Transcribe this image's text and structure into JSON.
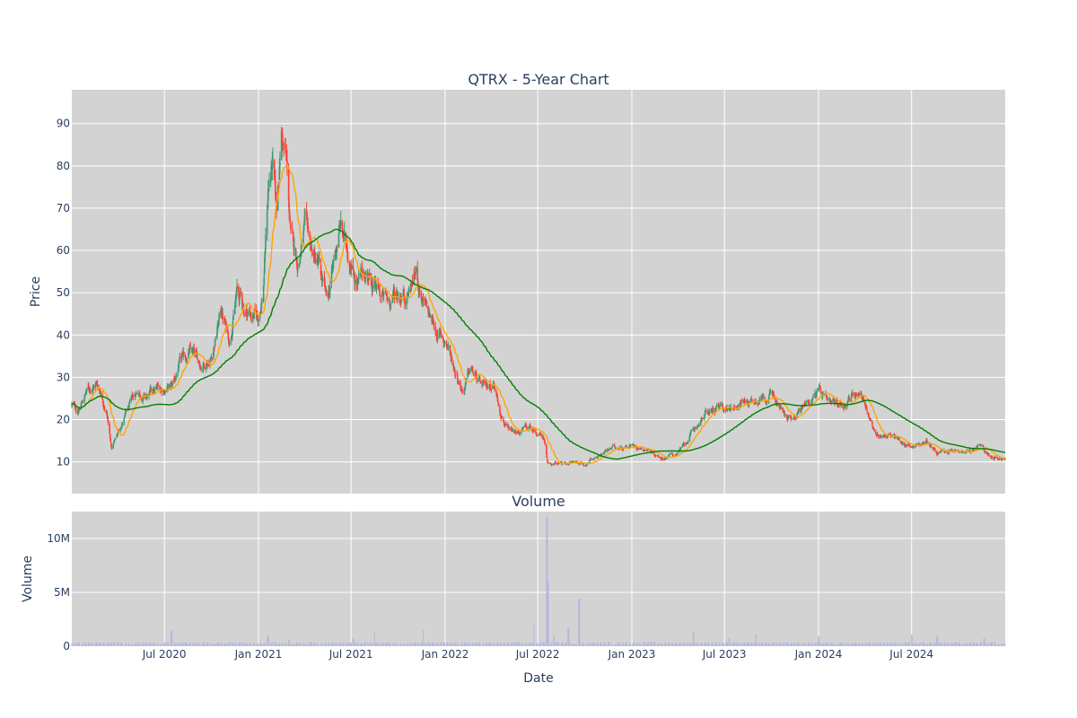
{
  "chart_data": [
    {
      "type": "candlestick",
      "title": "QTRX - 5-Year Chart",
      "xlabel": "",
      "ylabel": "Price",
      "xlim": [
        "2020-01-02",
        "2024-12-31"
      ],
      "ylim": [
        2.5,
        98
      ],
      "yticks": [
        10,
        20,
        30,
        40,
        50,
        60,
        70,
        80,
        90
      ],
      "grid": true,
      "legend": "none",
      "colors": {
        "plot_bg": "#d3d3d3",
        "grid": "#ffffff",
        "up": "#3d9970",
        "down": "#ff4136",
        "ma_short": "#ffa500",
        "ma_long": "#008000"
      },
      "price_anchors": [
        [
          "2020-01-02",
          23.5
        ],
        [
          "2020-01-15",
          22
        ],
        [
          "2020-02-01",
          27
        ],
        [
          "2020-02-20",
          28.5
        ],
        [
          "2020-03-01",
          26
        ],
        [
          "2020-03-10",
          22
        ],
        [
          "2020-03-20",
          13
        ],
        [
          "2020-04-01",
          17
        ],
        [
          "2020-04-20",
          22
        ],
        [
          "2020-05-10",
          27
        ],
        [
          "2020-05-25",
          25
        ],
        [
          "2020-06-15",
          27
        ],
        [
          "2020-07-15",
          27.5
        ],
        [
          "2020-08-01",
          33
        ],
        [
          "2020-08-20",
          36
        ],
        [
          "2020-09-10",
          33
        ],
        [
          "2020-10-01",
          35
        ],
        [
          "2020-10-20",
          46
        ],
        [
          "2020-11-05",
          39
        ],
        [
          "2020-11-20",
          50
        ],
        [
          "2020-12-05",
          46
        ],
        [
          "2020-12-31",
          44
        ],
        [
          "2021-01-10",
          50
        ],
        [
          "2021-01-20",
          75
        ],
        [
          "2021-01-28",
          80
        ],
        [
          "2021-02-05",
          68
        ],
        [
          "2021-02-15",
          88
        ],
        [
          "2021-02-25",
          80
        ],
        [
          "2021-03-05",
          63
        ],
        [
          "2021-03-20",
          57
        ],
        [
          "2021-04-01",
          65
        ],
        [
          "2021-04-20",
          58
        ],
        [
          "2021-05-01",
          55
        ],
        [
          "2021-05-15",
          47
        ],
        [
          "2021-05-30",
          58
        ],
        [
          "2021-06-10",
          66
        ],
        [
          "2021-06-20",
          61
        ],
        [
          "2021-07-01",
          58
        ],
        [
          "2021-07-15",
          52
        ],
        [
          "2021-08-01",
          55
        ],
        [
          "2021-08-20",
          50
        ],
        [
          "2021-09-10",
          48
        ],
        [
          "2021-10-01",
          50
        ],
        [
          "2021-10-20",
          50
        ],
        [
          "2021-11-05",
          55
        ],
        [
          "2021-11-20",
          47
        ],
        [
          "2021-12-05",
          43
        ],
        [
          "2021-12-20",
          40
        ],
        [
          "2022-01-05",
          38
        ],
        [
          "2022-01-20",
          32
        ],
        [
          "2022-02-05",
          27
        ],
        [
          "2022-02-20",
          32
        ],
        [
          "2022-03-05",
          29
        ],
        [
          "2022-03-20",
          27
        ],
        [
          "2022-04-05",
          29
        ],
        [
          "2022-04-20",
          22
        ],
        [
          "2022-05-05",
          17
        ],
        [
          "2022-05-20",
          16.5
        ],
        [
          "2022-06-10",
          18
        ],
        [
          "2022-07-01",
          17
        ],
        [
          "2022-07-12",
          16
        ],
        [
          "2022-07-20",
          9.5
        ],
        [
          "2022-08-15",
          9.5
        ],
        [
          "2022-09-10",
          10
        ],
        [
          "2022-10-01",
          9.5
        ],
        [
          "2022-11-01",
          12
        ],
        [
          "2022-12-01",
          13.5
        ],
        [
          "2023-01-01",
          14
        ],
        [
          "2023-02-01",
          13
        ],
        [
          "2023-03-01",
          11
        ],
        [
          "2023-04-01",
          12
        ],
        [
          "2023-04-20",
          15
        ],
        [
          "2023-05-10",
          19
        ],
        [
          "2023-06-01",
          22
        ],
        [
          "2023-07-01",
          22.5
        ],
        [
          "2023-08-01",
          24
        ],
        [
          "2023-09-01",
          25
        ],
        [
          "2023-10-01",
          26
        ],
        [
          "2023-11-01",
          20
        ],
        [
          "2023-12-01",
          23
        ],
        [
          "2024-01-01",
          27
        ],
        [
          "2024-01-20",
          23
        ],
        [
          "2024-02-20",
          24
        ],
        [
          "2024-03-20",
          27
        ],
        [
          "2024-04-01",
          24
        ],
        [
          "2024-04-20",
          16
        ],
        [
          "2024-05-20",
          16.5
        ],
        [
          "2024-06-20",
          14
        ],
        [
          "2024-07-10",
          14
        ],
        [
          "2024-08-01",
          15
        ],
        [
          "2024-08-20",
          12
        ],
        [
          "2024-09-20",
          12.5
        ],
        [
          "2024-10-20",
          12
        ],
        [
          "2024-11-10",
          14
        ],
        [
          "2024-12-01",
          11.5
        ],
        [
          "2024-12-31",
          10.5
        ]
      ]
    },
    {
      "type": "bar",
      "title": "Volume",
      "xlabel": "Date",
      "ylabel": "Volume",
      "ylim": [
        0,
        12500000
      ],
      "yticks": [
        0,
        5000000,
        10000000
      ],
      "ytick_labels": [
        "0",
        "5M",
        "10M"
      ],
      "xticks": [
        "2020-07-01",
        "2021-01-01",
        "2021-07-01",
        "2022-01-01",
        "2022-07-01",
        "2023-01-01",
        "2023-07-01",
        "2024-01-01",
        "2024-07-01"
      ],
      "xtick_labels": [
        "Jul 2020",
        "Jan 2021",
        "Jul 2021",
        "Jan 2022",
        "Jul 2022",
        "Jan 2023",
        "Jul 2023",
        "Jan 2024",
        "Jul 2024"
      ],
      "grid": true,
      "colors": {
        "plot_bg": "#d3d3d3",
        "grid": "#ffffff",
        "bar": "#b7b7e0"
      },
      "base_volume": 250000,
      "volume_spikes": [
        [
          "2020-07-15",
          1400000
        ],
        [
          "2021-01-20",
          1000000
        ],
        [
          "2021-03-01",
          600000
        ],
        [
          "2021-07-05",
          800000
        ],
        [
          "2021-08-15",
          1300000
        ],
        [
          "2021-11-20",
          1500000
        ],
        [
          "2022-06-25",
          2000000
        ],
        [
          "2022-07-19",
          12000000
        ],
        [
          "2022-07-22",
          6000000
        ],
        [
          "2022-08-01",
          1000000
        ],
        [
          "2022-08-30",
          1700000
        ],
        [
          "2022-09-20",
          4400000
        ],
        [
          "2023-05-01",
          1300000
        ],
        [
          "2023-07-10",
          800000
        ],
        [
          "2023-09-01",
          1100000
        ],
        [
          "2024-01-01",
          900000
        ],
        [
          "2024-07-01",
          1100000
        ],
        [
          "2024-08-20",
          1000000
        ],
        [
          "2024-11-20",
          700000
        ]
      ]
    }
  ]
}
